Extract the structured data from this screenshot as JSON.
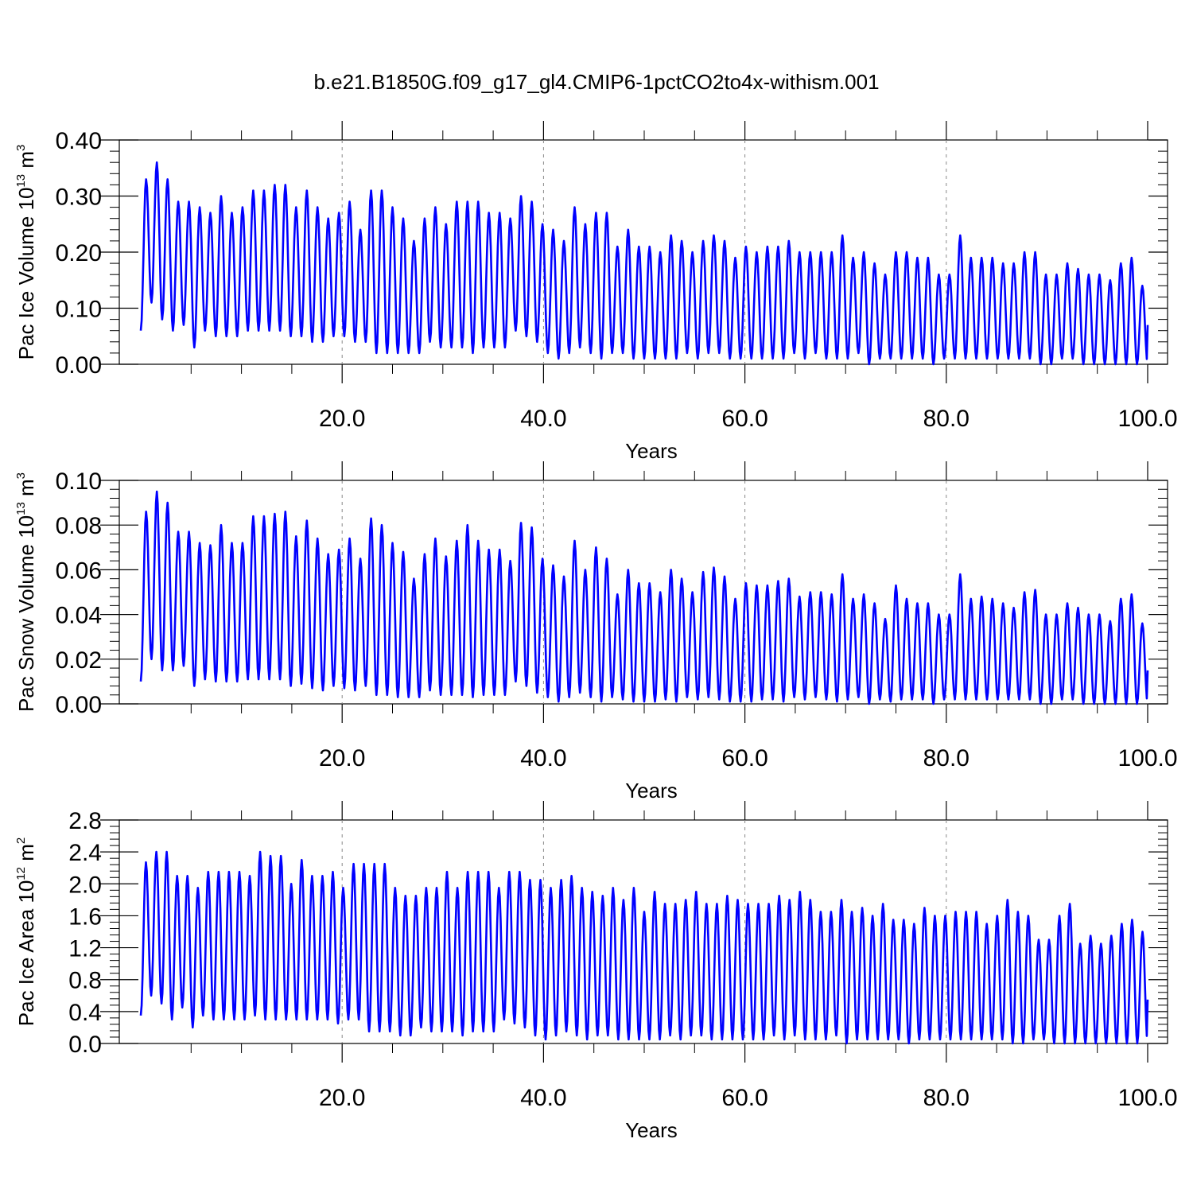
{
  "title": "b.e21.B1850G.f09_g17_gl4.CMIP6-1pctCO2to4x-withism.001",
  "colors": {
    "series": "#0000ff",
    "axis": "#000000",
    "grid": "#888888",
    "background": "#ffffff"
  },
  "chart_data": [
    {
      "type": "line",
      "xlabel": "Years",
      "ylabel": "Pac Ice Volume 10",
      "ylabel_exp": "13",
      "ylabel_unit": "m",
      "ylabel_unit_exp": "3",
      "xlim": [
        0.0,
        100.0
      ],
      "ylim": [
        0.0,
        0.4
      ],
      "xticks": [
        "20.0",
        "40.0",
        "60.0",
        "80.0",
        "100.0"
      ],
      "yticks": [
        "0.00",
        "0.10",
        "0.20",
        "0.30",
        "0.40"
      ],
      "grid": "vertical dashed lines at major x ticks",
      "series": [
        {
          "x_start": 0.0,
          "x_step": 1.0,
          "description_of_values": "annual maximum and minimum of a seasonal cycle",
          "annual_max": [
            0.33,
            0.36,
            0.33,
            0.29,
            0.29,
            0.28,
            0.27,
            0.3,
            0.27,
            0.28,
            0.31,
            0.31,
            0.32,
            0.32,
            0.28,
            0.31,
            0.28,
            0.26,
            0.27,
            0.29,
            0.24,
            0.31,
            0.31,
            0.28,
            0.26,
            0.22,
            0.26,
            0.28,
            0.25,
            0.29,
            0.29,
            0.29,
            0.27,
            0.27,
            0.26,
            0.3,
            0.29,
            0.25,
            0.24,
            0.22,
            0.28,
            0.25,
            0.27,
            0.27,
            0.21,
            0.24,
            0.21,
            0.21,
            0.2,
            0.23,
            0.22,
            0.2,
            0.22,
            0.23,
            0.22,
            0.19,
            0.21,
            0.2,
            0.21,
            0.21,
            0.22,
            0.2,
            0.2,
            0.2,
            0.2,
            0.23,
            0.19,
            0.2,
            0.18,
            0.16,
            0.2,
            0.2,
            0.19,
            0.19,
            0.16,
            0.16,
            0.23,
            0.19,
            0.19,
            0.19,
            0.18,
            0.18,
            0.2,
            0.2,
            0.16,
            0.16,
            0.18,
            0.17,
            0.16,
            0.16,
            0.15,
            0.18,
            0.19,
            0.14
          ],
          "annual_min": [
            0.06,
            0.11,
            0.08,
            0.06,
            0.07,
            0.03,
            0.06,
            0.05,
            0.05,
            0.05,
            0.06,
            0.06,
            0.06,
            0.06,
            0.05,
            0.05,
            0.04,
            0.04,
            0.05,
            0.05,
            0.04,
            0.04,
            0.02,
            0.02,
            0.02,
            0.02,
            0.02,
            0.04,
            0.03,
            0.03,
            0.03,
            0.02,
            0.03,
            0.03,
            0.03,
            0.06,
            0.05,
            0.04,
            0.02,
            0.01,
            0.02,
            0.03,
            0.02,
            0.01,
            0.02,
            0.02,
            0.01,
            0.01,
            0.01,
            0.01,
            0.01,
            0.02,
            0.01,
            0.02,
            0.02,
            0.01,
            0.01,
            0.01,
            0.01,
            0.01,
            0.01,
            0.02,
            0.01,
            0.02,
            0.01,
            0.01,
            0.01,
            0.02,
            0.0,
            0.01,
            0.01,
            0.01,
            0.01,
            0.01,
            0.0,
            0.01,
            0.01,
            0.01,
            0.01,
            0.01,
            0.01,
            0.01,
            0.01,
            0.01,
            0.0,
            0.0,
            0.01,
            0.01,
            0.0,
            0.0,
            0.0,
            0.0,
            0.0,
            0.0
          ],
          "x_end_value": 0.07
        }
      ]
    },
    {
      "type": "line",
      "xlabel": "Years",
      "ylabel": "Pac Snow Volume 10",
      "ylabel_exp": "13",
      "ylabel_unit": "m",
      "ylabel_unit_exp": "3",
      "xlim": [
        0.0,
        100.0
      ],
      "ylim": [
        0.0,
        0.1
      ],
      "xticks": [
        "20.0",
        "40.0",
        "60.0",
        "80.0",
        "100.0"
      ],
      "yticks": [
        "0.00",
        "0.02",
        "0.04",
        "0.06",
        "0.08",
        "0.10"
      ],
      "grid": "vertical dashed lines at major x ticks",
      "series": [
        {
          "x_start": 0.0,
          "x_step": 1.0,
          "annual_max": [
            0.086,
            0.095,
            0.09,
            0.077,
            0.077,
            0.072,
            0.071,
            0.08,
            0.072,
            0.072,
            0.084,
            0.084,
            0.085,
            0.086,
            0.075,
            0.082,
            0.074,
            0.067,
            0.069,
            0.074,
            0.065,
            0.083,
            0.08,
            0.072,
            0.068,
            0.056,
            0.067,
            0.074,
            0.066,
            0.073,
            0.08,
            0.073,
            0.069,
            0.069,
            0.064,
            0.081,
            0.079,
            0.065,
            0.062,
            0.057,
            0.073,
            0.06,
            0.07,
            0.065,
            0.049,
            0.06,
            0.054,
            0.054,
            0.05,
            0.06,
            0.056,
            0.05,
            0.059,
            0.061,
            0.057,
            0.047,
            0.054,
            0.053,
            0.053,
            0.055,
            0.056,
            0.048,
            0.05,
            0.05,
            0.049,
            0.058,
            0.047,
            0.049,
            0.045,
            0.038,
            0.053,
            0.047,
            0.045,
            0.045,
            0.04,
            0.04,
            0.058,
            0.047,
            0.048,
            0.047,
            0.045,
            0.043,
            0.05,
            0.051,
            0.04,
            0.04,
            0.045,
            0.043,
            0.04,
            0.04,
            0.037,
            0.047,
            0.049,
            0.036
          ],
          "annual_min": [
            0.01,
            0.02,
            0.015,
            0.015,
            0.017,
            0.008,
            0.011,
            0.01,
            0.01,
            0.01,
            0.011,
            0.011,
            0.011,
            0.011,
            0.008,
            0.009,
            0.007,
            0.006,
            0.008,
            0.007,
            0.006,
            0.008,
            0.004,
            0.004,
            0.003,
            0.003,
            0.003,
            0.006,
            0.004,
            0.004,
            0.004,
            0.003,
            0.004,
            0.004,
            0.004,
            0.01,
            0.008,
            0.005,
            0.003,
            0.001,
            0.003,
            0.005,
            0.003,
            0.001,
            0.003,
            0.002,
            0.001,
            0.001,
            0.001,
            0.002,
            0.001,
            0.003,
            0.002,
            0.003,
            0.002,
            0.001,
            0.001,
            0.001,
            0.002,
            0.002,
            0.001,
            0.003,
            0.002,
            0.003,
            0.002,
            0.001,
            0.002,
            0.003,
            0.0,
            0.002,
            0.001,
            0.002,
            0.002,
            0.002,
            0.0,
            0.002,
            0.002,
            0.002,
            0.002,
            0.002,
            0.002,
            0.002,
            0.002,
            0.002,
            0.0,
            0.0,
            0.002,
            0.002,
            0.0,
            0.0,
            0.0,
            0.0,
            0.0,
            0.0
          ],
          "x_end_value": 0.015
        }
      ]
    },
    {
      "type": "line",
      "xlabel": "Years",
      "ylabel": "Pac Ice Area 10",
      "ylabel_exp": "12",
      "ylabel_unit": "m",
      "ylabel_unit_exp": "2",
      "xlim": [
        0.0,
        100.0
      ],
      "ylim": [
        0.0,
        2.8
      ],
      "xticks": [
        "20.0",
        "40.0",
        "60.0",
        "80.0",
        "100.0"
      ],
      "yticks": [
        "0.0",
        "0.4",
        "0.8",
        "1.2",
        "1.6",
        "2.0",
        "2.4",
        "2.8"
      ],
      "grid": "vertical dashed lines at major x ticks",
      "series": [
        {
          "x_start": 0.0,
          "x_step": 1.0,
          "annual_max": [
            2.27,
            2.4,
            2.4,
            2.1,
            2.1,
            1.95,
            2.15,
            2.15,
            2.15,
            2.15,
            2.1,
            2.4,
            2.35,
            2.35,
            2.0,
            2.3,
            2.1,
            2.1,
            2.15,
            1.95,
            2.25,
            2.25,
            2.25,
            2.25,
            1.95,
            1.85,
            1.85,
            1.95,
            1.95,
            2.15,
            1.95,
            2.15,
            2.15,
            2.15,
            1.95,
            2.15,
            2.15,
            2.05,
            2.05,
            1.95,
            2.05,
            2.1,
            1.95,
            1.9,
            1.85,
            1.95,
            1.8,
            1.95,
            1.65,
            1.9,
            1.75,
            1.75,
            1.8,
            1.9,
            1.75,
            1.75,
            1.85,
            1.8,
            1.75,
            1.75,
            1.75,
            1.85,
            1.8,
            1.9,
            1.8,
            1.65,
            1.65,
            1.8,
            1.65,
            1.7,
            1.6,
            1.75,
            1.55,
            1.55,
            1.5,
            1.7,
            1.6,
            1.6,
            1.65,
            1.65,
            1.65,
            1.5,
            1.6,
            1.8,
            1.65,
            1.6,
            1.3,
            1.3,
            1.6,
            1.75,
            1.25,
            1.35,
            1.25,
            1.35,
            1.5,
            1.55,
            1.4
          ],
          "annual_min": [
            0.35,
            0.6,
            0.5,
            0.3,
            0.45,
            0.2,
            0.35,
            0.3,
            0.3,
            0.3,
            0.3,
            0.35,
            0.3,
            0.3,
            0.3,
            0.3,
            0.3,
            0.3,
            0.3,
            0.25,
            0.3,
            0.3,
            0.15,
            0.15,
            0.15,
            0.1,
            0.1,
            0.2,
            0.15,
            0.15,
            0.15,
            0.1,
            0.15,
            0.15,
            0.15,
            0.3,
            0.25,
            0.2,
            0.1,
            0.05,
            0.1,
            0.15,
            0.1,
            0.05,
            0.1,
            0.1,
            0.05,
            0.05,
            0.05,
            0.05,
            0.05,
            0.1,
            0.05,
            0.1,
            0.1,
            0.05,
            0.05,
            0.05,
            0.05,
            0.05,
            0.05,
            0.1,
            0.05,
            0.1,
            0.05,
            0.05,
            0.05,
            0.1,
            0.0,
            0.05,
            0.05,
            0.05,
            0.05,
            0.05,
            0.0,
            0.05,
            0.05,
            0.05,
            0.05,
            0.05,
            0.05,
            0.05,
            0.05,
            0.05,
            0.0,
            0.0,
            0.05,
            0.05,
            0.0,
            0.0,
            0.0,
            0.0,
            0.0,
            0.0,
            0.0,
            0.0,
            0.0
          ],
          "x_end_value": 0.55
        }
      ]
    }
  ]
}
